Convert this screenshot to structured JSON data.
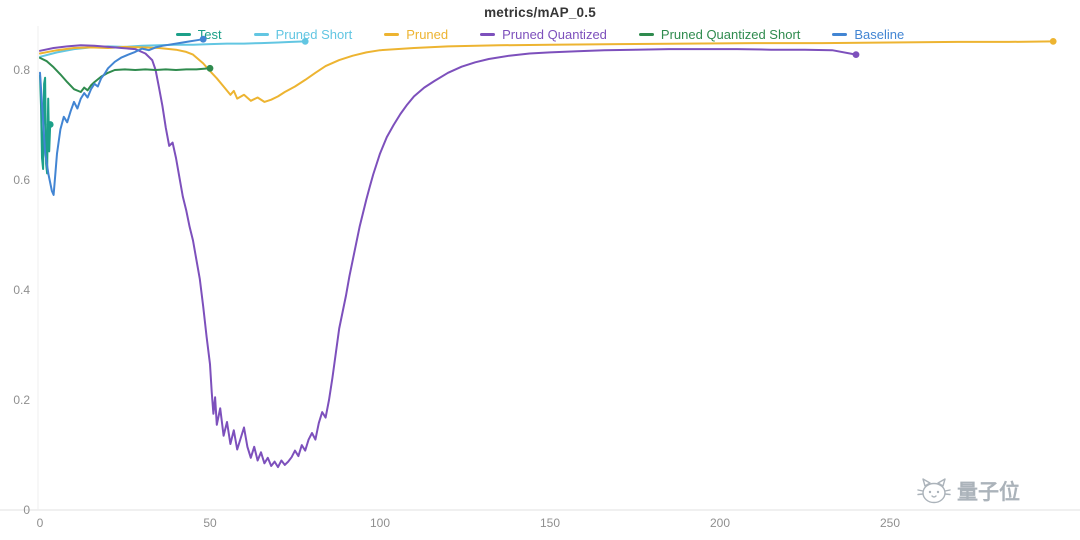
{
  "watermark": {
    "text": "量子位"
  },
  "chart_data": {
    "type": "line",
    "title": "metrics/mAP_0.5",
    "xlabel": "",
    "ylabel": "",
    "xlim": [
      0,
      300
    ],
    "ylim": [
      0,
      0.88
    ],
    "xticks": [
      0,
      50,
      100,
      150,
      200,
      250
    ],
    "yticks": [
      0,
      0.2,
      0.4,
      0.6,
      0.8
    ],
    "grid": false,
    "legend_position": "top",
    "axis_color": "#e0e0e0",
    "tick_label_color": "#8f8f8f",
    "series": [
      {
        "name": "Test",
        "slug": "test",
        "color": "#1ca089",
        "end_dot": true,
        "points": [
          [
            0,
            0.79
          ],
          [
            0.3,
            0.735
          ],
          [
            0.6,
            0.64
          ],
          [
            0.9,
            0.62
          ],
          [
            1.2,
            0.775
          ],
          [
            1.5,
            0.786
          ],
          [
            1.8,
            0.63
          ],
          [
            2.1,
            0.612
          ],
          [
            2.4,
            0.748
          ],
          [
            2.7,
            0.652
          ],
          [
            3,
            0.701
          ]
        ]
      },
      {
        "name": "Pruned Short",
        "slug": "pruned-short",
        "color": "#62c6e2",
        "end_dot": true,
        "points": [
          [
            0,
            0.824
          ],
          [
            5,
            0.832
          ],
          [
            10,
            0.838
          ],
          [
            15,
            0.841
          ],
          [
            20,
            0.843
          ],
          [
            25,
            0.842
          ],
          [
            30,
            0.844
          ],
          [
            35,
            0.845
          ],
          [
            40,
            0.846
          ],
          [
            45,
            0.846
          ],
          [
            50,
            0.847
          ],
          [
            55,
            0.848
          ],
          [
            60,
            0.848
          ],
          [
            65,
            0.849
          ],
          [
            70,
            0.85
          ],
          [
            74,
            0.851
          ],
          [
            78,
            0.852
          ]
        ]
      },
      {
        "name": "Pruned",
        "slug": "pruned",
        "color": "#edb431",
        "end_dot": true,
        "points": [
          [
            0,
            0.83
          ],
          [
            5,
            0.836
          ],
          [
            10,
            0.84
          ],
          [
            15,
            0.841
          ],
          [
            20,
            0.84
          ],
          [
            25,
            0.842
          ],
          [
            30,
            0.841
          ],
          [
            35,
            0.84
          ],
          [
            40,
            0.837
          ],
          [
            43,
            0.833
          ],
          [
            45,
            0.828
          ],
          [
            48,
            0.812
          ],
          [
            50,
            0.798
          ],
          [
            52,
            0.785
          ],
          [
            54,
            0.77
          ],
          [
            56,
            0.755
          ],
          [
            57,
            0.762
          ],
          [
            58,
            0.748
          ],
          [
            60,
            0.755
          ],
          [
            62,
            0.744
          ],
          [
            64,
            0.75
          ],
          [
            66,
            0.742
          ],
          [
            68,
            0.746
          ],
          [
            70,
            0.752
          ],
          [
            72,
            0.76
          ],
          [
            75,
            0.77
          ],
          [
            78,
            0.782
          ],
          [
            81,
            0.795
          ],
          [
            84,
            0.807
          ],
          [
            88,
            0.818
          ],
          [
            92,
            0.826
          ],
          [
            96,
            0.832
          ],
          [
            100,
            0.836
          ],
          [
            110,
            0.84
          ],
          [
            120,
            0.843
          ],
          [
            135,
            0.845
          ],
          [
            150,
            0.846
          ],
          [
            170,
            0.847
          ],
          [
            190,
            0.848
          ],
          [
            210,
            0.849
          ],
          [
            230,
            0.849
          ],
          [
            250,
            0.85
          ],
          [
            270,
            0.851
          ],
          [
            285,
            0.851
          ],
          [
            298,
            0.852
          ]
        ]
      },
      {
        "name": "Pruned Quantized",
        "slug": "pruned-quantized",
        "color": "#7d50bc",
        "end_dot": true,
        "points": [
          [
            0,
            0.835
          ],
          [
            4,
            0.84
          ],
          [
            8,
            0.843
          ],
          [
            12,
            0.845
          ],
          [
            16,
            0.844
          ],
          [
            20,
            0.842
          ],
          [
            24,
            0.84
          ],
          [
            28,
            0.838
          ],
          [
            31,
            0.83
          ],
          [
            33,
            0.818
          ],
          [
            34,
            0.8
          ],
          [
            35,
            0.768
          ],
          [
            36,
            0.735
          ],
          [
            37,
            0.695
          ],
          [
            38,
            0.662
          ],
          [
            39,
            0.668
          ],
          [
            40,
            0.64
          ],
          [
            41,
            0.605
          ],
          [
            42,
            0.57
          ],
          [
            43,
            0.545
          ],
          [
            44,
            0.515
          ],
          [
            45,
            0.49
          ],
          [
            46,
            0.455
          ],
          [
            47,
            0.42
          ],
          [
            48,
            0.37
          ],
          [
            49,
            0.315
          ],
          [
            50,
            0.265
          ],
          [
            50.5,
            0.215
          ],
          [
            51,
            0.175
          ],
          [
            51.5,
            0.205
          ],
          [
            52,
            0.155
          ],
          [
            53,
            0.185
          ],
          [
            54,
            0.135
          ],
          [
            55,
            0.16
          ],
          [
            56,
            0.12
          ],
          [
            57,
            0.145
          ],
          [
            58,
            0.11
          ],
          [
            59,
            0.13
          ],
          [
            60,
            0.15
          ],
          [
            61,
            0.115
          ],
          [
            62,
            0.095
          ],
          [
            63,
            0.115
          ],
          [
            64,
            0.09
          ],
          [
            65,
            0.105
          ],
          [
            66,
            0.085
          ],
          [
            67,
            0.095
          ],
          [
            68,
            0.08
          ],
          [
            69,
            0.088
          ],
          [
            70,
            0.078
          ],
          [
            71,
            0.09
          ],
          [
            72,
            0.082
          ],
          [
            73,
            0.088
          ],
          [
            74,
            0.096
          ],
          [
            75,
            0.108
          ],
          [
            76,
            0.098
          ],
          [
            77,
            0.118
          ],
          [
            78,
            0.108
          ],
          [
            79,
            0.128
          ],
          [
            80,
            0.14
          ],
          [
            81,
            0.128
          ],
          [
            82,
            0.158
          ],
          [
            83,
            0.178
          ],
          [
            84,
            0.168
          ],
          [
            85,
            0.2
          ],
          [
            86,
            0.24
          ],
          [
            87,
            0.285
          ],
          [
            88,
            0.33
          ],
          [
            89,
            0.36
          ],
          [
            90,
            0.39
          ],
          [
            91,
            0.425
          ],
          [
            92,
            0.455
          ],
          [
            93,
            0.485
          ],
          [
            94,
            0.515
          ],
          [
            95,
            0.54
          ],
          [
            96,
            0.565
          ],
          [
            97,
            0.588
          ],
          [
            98,
            0.61
          ],
          [
            100,
            0.648
          ],
          [
            102,
            0.678
          ],
          [
            104,
            0.7
          ],
          [
            106,
            0.72
          ],
          [
            108,
            0.737
          ],
          [
            110,
            0.752
          ],
          [
            113,
            0.768
          ],
          [
            116,
            0.78
          ],
          [
            120,
            0.795
          ],
          [
            124,
            0.806
          ],
          [
            128,
            0.814
          ],
          [
            132,
            0.82
          ],
          [
            138,
            0.826
          ],
          [
            144,
            0.83
          ],
          [
            150,
            0.832
          ],
          [
            158,
            0.834
          ],
          [
            166,
            0.836
          ],
          [
            175,
            0.837
          ],
          [
            185,
            0.838
          ],
          [
            195,
            0.838
          ],
          [
            205,
            0.838
          ],
          [
            215,
            0.837
          ],
          [
            225,
            0.837
          ],
          [
            233,
            0.836
          ],
          [
            240,
            0.828
          ]
        ]
      },
      {
        "name": "Pruned Quantized Short",
        "slug": "pruned-quantized-short",
        "color": "#2f8b4e",
        "end_dot": true,
        "points": [
          [
            0,
            0.822
          ],
          [
            2,
            0.816
          ],
          [
            4,
            0.805
          ],
          [
            6,
            0.792
          ],
          [
            8,
            0.778
          ],
          [
            10,
            0.765
          ],
          [
            12,
            0.76
          ],
          [
            13,
            0.768
          ],
          [
            14,
            0.763
          ],
          [
            15,
            0.772
          ],
          [
            16,
            0.778
          ],
          [
            18,
            0.788
          ],
          [
            20,
            0.795
          ],
          [
            22,
            0.8
          ],
          [
            25,
            0.801
          ],
          [
            28,
            0.8
          ],
          [
            31,
            0.801
          ],
          [
            34,
            0.8
          ],
          [
            37,
            0.801
          ],
          [
            40,
            0.8
          ],
          [
            43,
            0.801
          ],
          [
            46,
            0.801
          ],
          [
            50,
            0.803
          ]
        ]
      },
      {
        "name": "Baseline",
        "slug": "baseline",
        "color": "#4285d3",
        "end_dot": true,
        "points": [
          [
            0,
            0.795
          ],
          [
            0.8,
            0.72
          ],
          [
            1.5,
            0.65
          ],
          [
            2.5,
            0.61
          ],
          [
            3.5,
            0.58
          ],
          [
            4,
            0.573
          ],
          [
            4.5,
            0.61
          ],
          [
            5,
            0.648
          ],
          [
            6,
            0.692
          ],
          [
            7,
            0.715
          ],
          [
            8,
            0.705
          ],
          [
            9,
            0.725
          ],
          [
            10,
            0.742
          ],
          [
            11,
            0.73
          ],
          [
            12,
            0.748
          ],
          [
            13,
            0.758
          ],
          [
            14,
            0.75
          ],
          [
            15,
            0.765
          ],
          [
            16,
            0.775
          ],
          [
            17,
            0.77
          ],
          [
            18,
            0.785
          ],
          [
            19,
            0.793
          ],
          [
            20,
            0.803
          ],
          [
            22,
            0.815
          ],
          [
            24,
            0.823
          ],
          [
            26,
            0.828
          ],
          [
            28,
            0.833
          ],
          [
            30,
            0.839
          ],
          [
            32,
            0.836
          ],
          [
            34,
            0.841
          ],
          [
            36,
            0.844
          ],
          [
            38,
            0.846
          ],
          [
            40,
            0.848
          ],
          [
            42,
            0.85
          ],
          [
            44,
            0.852
          ],
          [
            46,
            0.854
          ],
          [
            48,
            0.856
          ]
        ]
      }
    ]
  }
}
